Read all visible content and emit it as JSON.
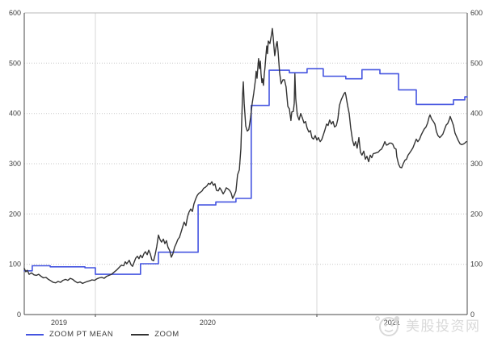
{
  "legend": {
    "items": [
      {
        "label": "ZOOM PT MEAN",
        "color": "#4454e0"
      },
      {
        "label": "ZOOM",
        "color": "#333333"
      }
    ]
  },
  "watermark": {
    "text": "美股投资网",
    "logo": "cartoon-face-logo",
    "color": "#d9d9d9"
  },
  "chart_data": {
    "type": "line",
    "title": "",
    "xlabel": "",
    "ylabel": "",
    "grid": true,
    "legend_position": "bottom-left",
    "x_axis": {
      "range": [
        2019.679,
        2021.679
      ],
      "labels": [
        "2019",
        "2020",
        "2021"
      ],
      "label_positions": [
        2019.836,
        2020.507,
        2021.339
      ],
      "gridlines": [
        2020,
        2021
      ]
    },
    "y_axis": {
      "range": [
        0,
        600
      ],
      "ticks": [
        0,
        100,
        200,
        300,
        400,
        500,
        600
      ],
      "label_sides": "both"
    },
    "series": [
      {
        "name": "ZOOM PT MEAN",
        "color": "#4454e0",
        "width": 1.6,
        "interpolation": "step-after",
        "points": [
          [
            2019.679,
            87
          ],
          [
            2019.715,
            97
          ],
          [
            2019.796,
            95
          ],
          [
            2019.953,
            93
          ],
          [
            2020.0,
            80
          ],
          [
            2020.204,
            101
          ],
          [
            2020.285,
            124
          ],
          [
            2020.464,
            218
          ],
          [
            2020.544,
            224
          ],
          [
            2020.635,
            231
          ],
          [
            2020.704,
            416
          ],
          [
            2020.785,
            486
          ],
          [
            2020.876,
            481
          ],
          [
            2020.956,
            489
          ],
          [
            2021.029,
            474
          ],
          [
            2021.131,
            469
          ],
          [
            2021.204,
            487
          ],
          [
            2021.285,
            479
          ],
          [
            2021.369,
            447
          ],
          [
            2021.449,
            418
          ],
          [
            2021.617,
            427
          ],
          [
            2021.668,
            433
          ],
          [
            2021.679,
            433
          ]
        ]
      },
      {
        "name": "ZOOM",
        "color": "#333333",
        "width": 1.4,
        "interpolation": "linear",
        "points": [
          [
            2019.679,
            92
          ],
          [
            2019.686,
            85
          ],
          [
            2019.693,
            88
          ],
          [
            2019.701,
            80
          ],
          [
            2019.712,
            83
          ],
          [
            2019.723,
            79
          ],
          [
            2019.734,
            78
          ],
          [
            2019.744,
            80
          ],
          [
            2019.755,
            76
          ],
          [
            2019.766,
            73
          ],
          [
            2019.777,
            74
          ],
          [
            2019.788,
            70
          ],
          [
            2019.799,
            67
          ],
          [
            2019.81,
            64
          ],
          [
            2019.821,
            63
          ],
          [
            2019.832,
            66
          ],
          [
            2019.843,
            64
          ],
          [
            2019.854,
            68
          ],
          [
            2019.865,
            70
          ],
          [
            2019.876,
            68
          ],
          [
            2019.887,
            72
          ],
          [
            2019.898,
            70
          ],
          [
            2019.909,
            66
          ],
          [
            2019.92,
            63
          ],
          [
            2019.931,
            65
          ],
          [
            2019.942,
            62
          ],
          [
            2019.953,
            64
          ],
          [
            2019.964,
            66
          ],
          [
            2019.974,
            67
          ],
          [
            2019.985,
            69
          ],
          [
            2019.996,
            68
          ],
          [
            2020.007,
            71
          ],
          [
            2020.018,
            73
          ],
          [
            2020.029,
            74
          ],
          [
            2020.04,
            72
          ],
          [
            2020.051,
            76
          ],
          [
            2020.062,
            78
          ],
          [
            2020.073,
            80
          ],
          [
            2020.084,
            84
          ],
          [
            2020.095,
            88
          ],
          [
            2020.106,
            93
          ],
          [
            2020.117,
            98
          ],
          [
            2020.128,
            97
          ],
          [
            2020.135,
            105
          ],
          [
            2020.142,
            101
          ],
          [
            2020.153,
            108
          ],
          [
            2020.161,
            99
          ],
          [
            2020.168,
            96
          ],
          [
            2020.175,
            104
          ],
          [
            2020.182,
            112
          ],
          [
            2020.19,
            116
          ],
          [
            2020.197,
            111
          ],
          [
            2020.204,
            118
          ],
          [
            2020.212,
            113
          ],
          [
            2020.219,
            121
          ],
          [
            2020.226,
            125
          ],
          [
            2020.234,
            119
          ],
          [
            2020.241,
            128
          ],
          [
            2020.248,
            121
          ],
          [
            2020.255,
            109
          ],
          [
            2020.263,
            107
          ],
          [
            2020.27,
            119
          ],
          [
            2020.277,
            135
          ],
          [
            2020.285,
            158
          ],
          [
            2020.292,
            149
          ],
          [
            2020.299,
            144
          ],
          [
            2020.307,
            150
          ],
          [
            2020.314,
            141
          ],
          [
            2020.321,
            147
          ],
          [
            2020.328,
            134
          ],
          [
            2020.336,
            127
          ],
          [
            2020.343,
            114
          ],
          [
            2020.35,
            121
          ],
          [
            2020.358,
            134
          ],
          [
            2020.365,
            141
          ],
          [
            2020.372,
            149
          ],
          [
            2020.38,
            154
          ],
          [
            2020.387,
            164
          ],
          [
            2020.394,
            174
          ],
          [
            2020.401,
            184
          ],
          [
            2020.409,
            177
          ],
          [
            2020.416,
            194
          ],
          [
            2020.423,
            204
          ],
          [
            2020.431,
            210
          ],
          [
            2020.438,
            205
          ],
          [
            2020.445,
            220
          ],
          [
            2020.453,
            230
          ],
          [
            2020.46,
            237
          ],
          [
            2020.467,
            241
          ],
          [
            2020.474,
            243
          ],
          [
            2020.482,
            246
          ],
          [
            2020.489,
            251
          ],
          [
            2020.496,
            253
          ],
          [
            2020.504,
            256
          ],
          [
            2020.511,
            261
          ],
          [
            2020.518,
            259
          ],
          [
            2020.526,
            264
          ],
          [
            2020.533,
            257
          ],
          [
            2020.54,
            260
          ],
          [
            2020.547,
            247
          ],
          [
            2020.555,
            246
          ],
          [
            2020.562,
            252
          ],
          [
            2020.569,
            247
          ],
          [
            2020.577,
            240
          ],
          [
            2020.584,
            245
          ],
          [
            2020.591,
            252
          ],
          [
            2020.599,
            250
          ],
          [
            2020.606,
            247
          ],
          [
            2020.613,
            242
          ],
          [
            2020.62,
            231
          ],
          [
            2020.628,
            238
          ],
          [
            2020.635,
            246
          ],
          [
            2020.642,
            278
          ],
          [
            2020.65,
            288
          ],
          [
            2020.657,
            330
          ],
          [
            2020.664,
            430
          ],
          [
            2020.668,
            463
          ],
          [
            2020.672,
            420
          ],
          [
            2020.679,
            375
          ],
          [
            2020.686,
            365
          ],
          [
            2020.693,
            368
          ],
          [
            2020.701,
            392
          ],
          [
            2020.708,
            419
          ],
          [
            2020.715,
            440
          ],
          [
            2020.723,
            468
          ],
          [
            2020.726,
            484
          ],
          [
            2020.73,
            470
          ],
          [
            2020.734,
            494
          ],
          [
            2020.737,
            509
          ],
          [
            2020.741,
            489
          ],
          [
            2020.745,
            504
          ],
          [
            2020.748,
            479
          ],
          [
            2020.752,
            461
          ],
          [
            2020.755,
            469
          ],
          [
            2020.759,
            456
          ],
          [
            2020.763,
            479
          ],
          [
            2020.766,
            491
          ],
          [
            2020.77,
            514
          ],
          [
            2020.774,
            534
          ],
          [
            2020.777,
            519
          ],
          [
            2020.781,
            544
          ],
          [
            2020.788,
            539
          ],
          [
            2020.796,
            559
          ],
          [
            2020.799,
            569
          ],
          [
            2020.803,
            551
          ],
          [
            2020.807,
            529
          ],
          [
            2020.81,
            515
          ],
          [
            2020.818,
            539
          ],
          [
            2020.821,
            543
          ],
          [
            2020.825,
            524
          ],
          [
            2020.832,
            481
          ],
          [
            2020.839,
            459
          ],
          [
            2020.847,
            467
          ],
          [
            2020.854,
            467
          ],
          [
            2020.861,
            453
          ],
          [
            2020.869,
            414
          ],
          [
            2020.876,
            409
          ],
          [
            2020.883,
            386
          ],
          [
            2020.887,
            403
          ],
          [
            2020.894,
            404
          ],
          [
            2020.898,
            420
          ],
          [
            2020.901,
            479
          ],
          [
            2020.905,
            429
          ],
          [
            2020.912,
            397
          ],
          [
            2020.92,
            387
          ],
          [
            2020.927,
            400
          ],
          [
            2020.934,
            392
          ],
          [
            2020.942,
            381
          ],
          [
            2020.949,
            384
          ],
          [
            2020.956,
            371
          ],
          [
            2020.964,
            363
          ],
          [
            2020.971,
            366
          ],
          [
            2020.978,
            352
          ],
          [
            2020.985,
            349
          ],
          [
            2020.993,
            356
          ],
          [
            2021.0,
            347
          ],
          [
            2021.007,
            352
          ],
          [
            2021.015,
            344
          ],
          [
            2021.022,
            348
          ],
          [
            2021.029,
            357
          ],
          [
            2021.037,
            368
          ],
          [
            2021.044,
            379
          ],
          [
            2021.051,
            376
          ],
          [
            2021.058,
            387
          ],
          [
            2021.066,
            379
          ],
          [
            2021.073,
            384
          ],
          [
            2021.08,
            373
          ],
          [
            2021.088,
            376
          ],
          [
            2021.095,
            389
          ],
          [
            2021.102,
            416
          ],
          [
            2021.11,
            427
          ],
          [
            2021.117,
            434
          ],
          [
            2021.124,
            440
          ],
          [
            2021.128,
            442
          ],
          [
            2021.131,
            437
          ],
          [
            2021.139,
            416
          ],
          [
            2021.146,
            400
          ],
          [
            2021.153,
            371
          ],
          [
            2021.161,
            347
          ],
          [
            2021.168,
            336
          ],
          [
            2021.175,
            344
          ],
          [
            2021.182,
            331
          ],
          [
            2021.19,
            352
          ],
          [
            2021.197,
            323
          ],
          [
            2021.204,
            317
          ],
          [
            2021.212,
            325
          ],
          [
            2021.219,
            309
          ],
          [
            2021.226,
            315
          ],
          [
            2021.234,
            304
          ],
          [
            2021.241,
            317
          ],
          [
            2021.248,
            312
          ],
          [
            2021.255,
            320
          ],
          [
            2021.263,
            321
          ],
          [
            2021.27,
            322
          ],
          [
            2021.277,
            323
          ],
          [
            2021.285,
            327
          ],
          [
            2021.292,
            329
          ],
          [
            2021.299,
            335
          ],
          [
            2021.307,
            344
          ],
          [
            2021.314,
            337
          ],
          [
            2021.321,
            338
          ],
          [
            2021.328,
            341
          ],
          [
            2021.336,
            341
          ],
          [
            2021.343,
            339
          ],
          [
            2021.35,
            331
          ],
          [
            2021.358,
            329
          ],
          [
            2021.361,
            314
          ],
          [
            2021.369,
            299
          ],
          [
            2021.376,
            293
          ],
          [
            2021.383,
            292
          ],
          [
            2021.391,
            301
          ],
          [
            2021.398,
            307
          ],
          [
            2021.405,
            309
          ],
          [
            2021.412,
            317
          ],
          [
            2021.42,
            322
          ],
          [
            2021.427,
            327
          ],
          [
            2021.434,
            332
          ],
          [
            2021.442,
            341
          ],
          [
            2021.449,
            349
          ],
          [
            2021.456,
            344
          ],
          [
            2021.464,
            349
          ],
          [
            2021.471,
            357
          ],
          [
            2021.478,
            363
          ],
          [
            2021.485,
            369
          ],
          [
            2021.493,
            373
          ],
          [
            2021.5,
            381
          ],
          [
            2021.507,
            393
          ],
          [
            2021.511,
            397
          ],
          [
            2021.518,
            389
          ],
          [
            2021.526,
            384
          ],
          [
            2021.533,
            379
          ],
          [
            2021.54,
            364
          ],
          [
            2021.547,
            356
          ],
          [
            2021.555,
            352
          ],
          [
            2021.562,
            355
          ],
          [
            2021.569,
            359
          ],
          [
            2021.577,
            369
          ],
          [
            2021.584,
            377
          ],
          [
            2021.591,
            380
          ],
          [
            2021.599,
            389
          ],
          [
            2021.602,
            394
          ],
          [
            2021.609,
            386
          ],
          [
            2021.617,
            376
          ],
          [
            2021.624,
            361
          ],
          [
            2021.631,
            354
          ],
          [
            2021.639,
            346
          ],
          [
            2021.646,
            340
          ],
          [
            2021.653,
            338
          ],
          [
            2021.661,
            339
          ],
          [
            2021.668,
            341
          ],
          [
            2021.675,
            344
          ]
        ]
      }
    ]
  }
}
